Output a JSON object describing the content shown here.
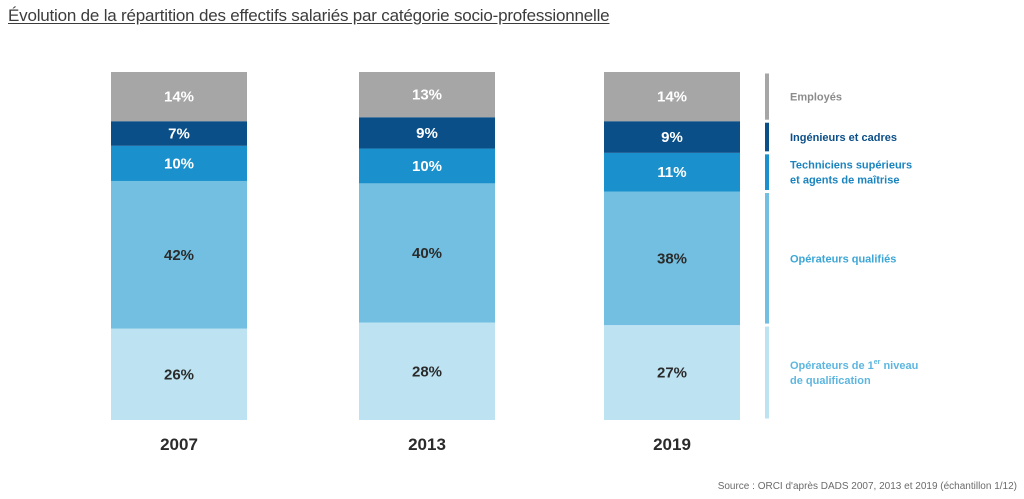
{
  "title": "Évolution de la répartition des effectifs salariés par catégorie socio-professionnelle",
  "source": "Source : ORCI d'après DADS 2007, 2013 et 2019 (échantillon 1/12)",
  "colors": {
    "employes": "#a6a6a6",
    "ingenieurs": "#0b4f88",
    "techniciens": "#1a91cc",
    "operateurs_qualifies": "#72bfe1",
    "operateurs_1er_niveau": "#bde2f2"
  },
  "legend": [
    {
      "key": "employes",
      "lines": [
        "Employés"
      ],
      "color": "#8c8c8c"
    },
    {
      "key": "ingenieurs",
      "lines": [
        "Ingénieurs et cadres"
      ],
      "color": "#0b4f88"
    },
    {
      "key": "techniciens",
      "lines": [
        "Techniciens supérieurs",
        "et agents de maîtrise"
      ],
      "color": "#1a84bf"
    },
    {
      "key": "operateurs_qualifies",
      "lines": [
        "Opérateurs qualifiés"
      ],
      "color": "#3ba6d6"
    },
    {
      "key": "operateurs_1er_niveau",
      "lines": [
        "Opérateurs de 1",
        "de qualification"
      ],
      "sup": "er",
      "sup_suffix": " niveau",
      "color": "#5db6e0"
    }
  ],
  "chart_data": {
    "type": "bar",
    "stacked": true,
    "percent": true,
    "categories": [
      "2007",
      "2013",
      "2019"
    ],
    "series": [
      {
        "name": "Opérateurs de 1er niveau de qualification",
        "key": "operateurs_1er_niveau",
        "values": [
          26,
          28,
          27
        ],
        "labels": [
          "26%",
          "28%",
          "27%"
        ]
      },
      {
        "name": "Opérateurs qualifiés",
        "key": "operateurs_qualifies",
        "values": [
          42,
          40,
          38
        ],
        "labels": [
          "42%",
          "40%",
          "38%"
        ]
      },
      {
        "name": "Techniciens supérieurs et agents de maîtrise",
        "key": "techniciens",
        "values": [
          10,
          10,
          11
        ],
        "labels": [
          "10%",
          "10%",
          "11%"
        ]
      },
      {
        "name": "Ingénieurs et cadres",
        "key": "ingenieurs",
        "values": [
          7,
          9,
          9
        ],
        "labels": [
          "7%",
          "9%",
          "9%"
        ]
      },
      {
        "name": "Employés",
        "key": "employes",
        "values": [
          14,
          13,
          14
        ],
        "labels": [
          "14%",
          "13%",
          "14%"
        ]
      }
    ],
    "legend_position": "right",
    "grid": false
  }
}
